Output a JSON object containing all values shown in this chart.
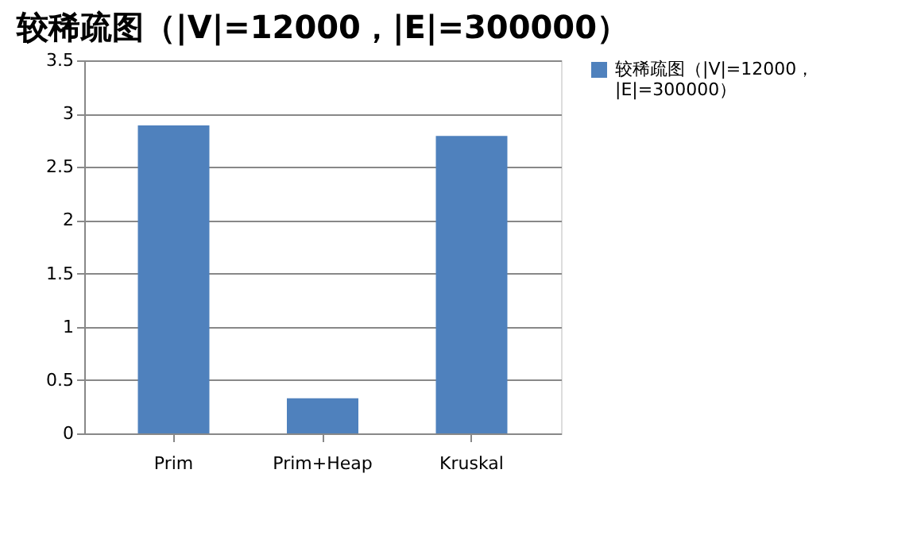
{
  "chart_data": {
    "type": "bar",
    "title": "较稀疏图（|V|=12000，|E|=300000）",
    "categories": [
      "Prim",
      "Prim+Heap",
      "Kruskal"
    ],
    "series": [
      {
        "name": "较稀疏图（|V|=12000，|E|=300000）",
        "color": "#4f81bd",
        "values": [
          2.89,
          0.33,
          2.79
        ]
      }
    ],
    "ylim": [
      0,
      3.5
    ],
    "yticks": [
      0,
      0.5,
      1,
      1.5,
      2,
      2.5,
      3,
      3.5
    ],
    "grid": "y",
    "legend": "right"
  }
}
